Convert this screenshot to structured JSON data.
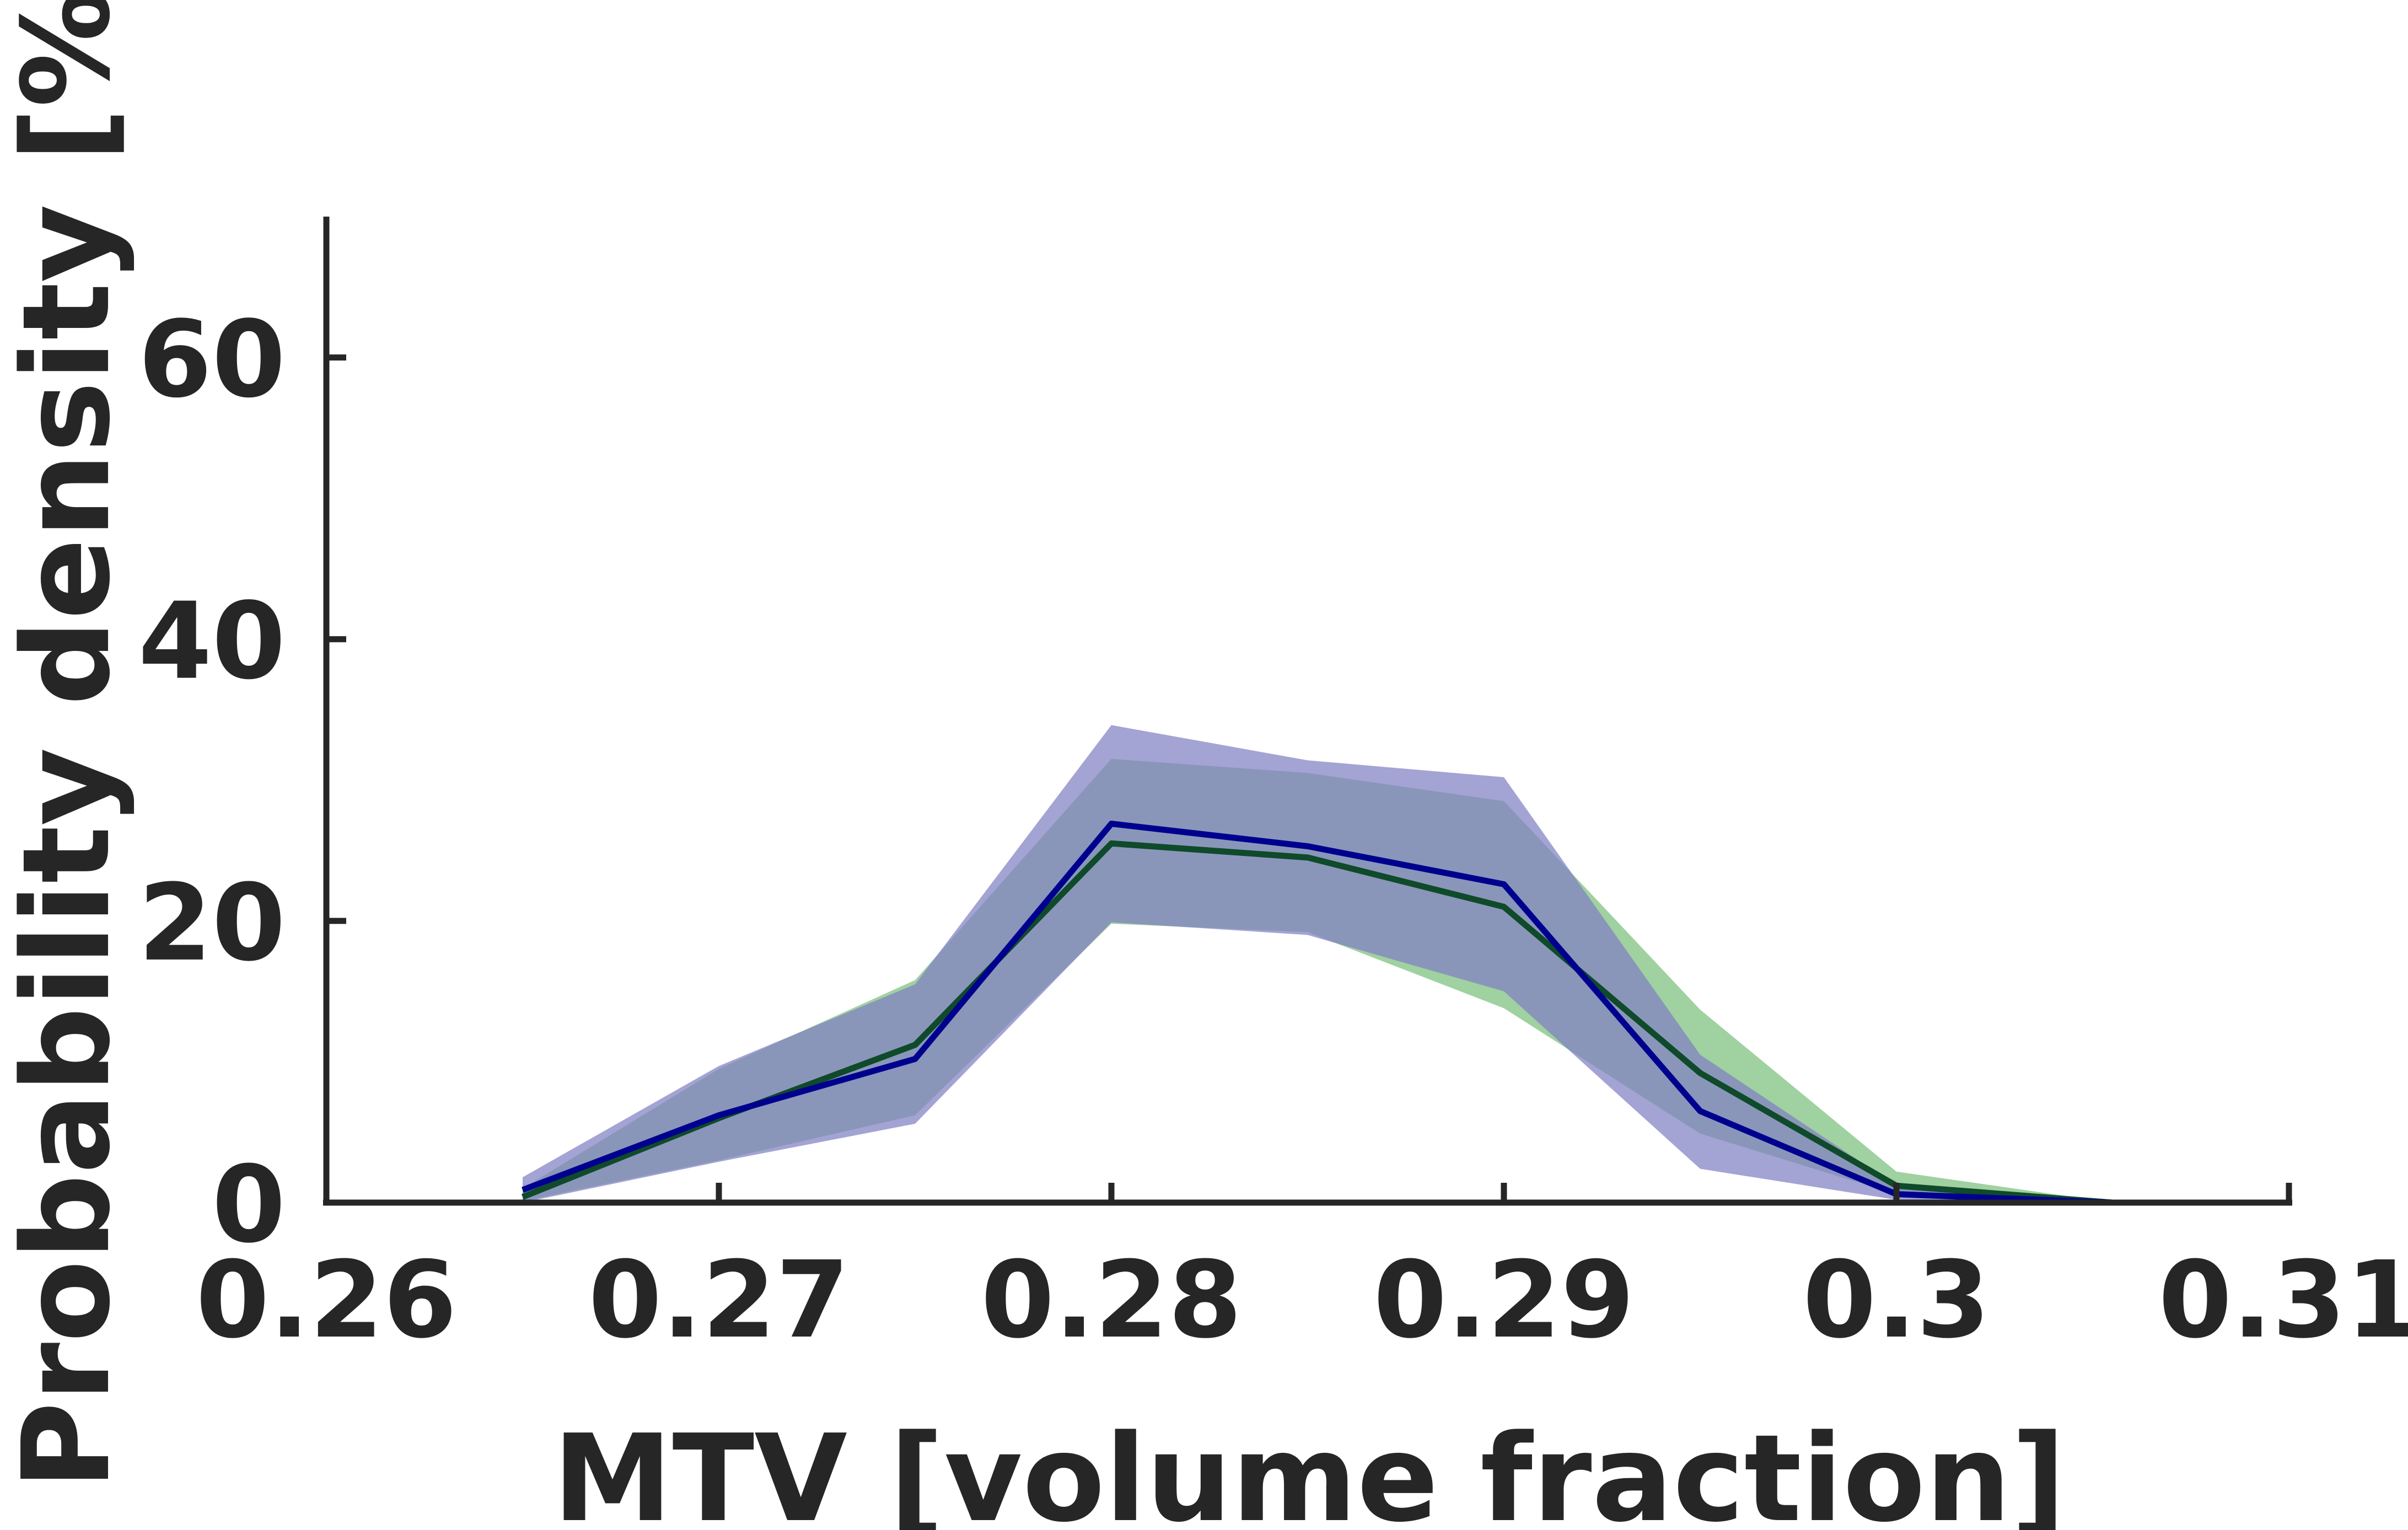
{
  "chart_data": {
    "type": "line",
    "title": "",
    "xlabel": "MTV [volume fraction]",
    "ylabel": "Probability density [%]",
    "xlim": [
      0.26,
      0.31
    ],
    "ylim": [
      0,
      70
    ],
    "xticks": [
      0.26,
      0.27,
      0.28,
      0.29,
      0.3,
      0.31
    ],
    "xtick_labels": [
      "0.26",
      "0.27",
      "0.28",
      "0.29",
      "0.3",
      "0.31"
    ],
    "yticks": [
      0,
      20,
      40,
      60
    ],
    "ytick_labels": [
      "0",
      "20",
      "40",
      "60"
    ],
    "grid": false,
    "legend": false,
    "x": [
      0.265,
      0.27,
      0.275,
      0.28,
      0.285,
      0.29,
      0.295,
      0.3,
      0.3055
    ],
    "series": [
      {
        "name": "green",
        "line_color": "#0f4a2a",
        "band_color": "#7cbf7c",
        "values": [
          0.4,
          6.0,
          11.2,
          25.5,
          24.5,
          21.0,
          9.2,
          1.2,
          0.0
        ],
        "upper": [
          1.0,
          9.5,
          15.8,
          31.5,
          30.5,
          28.5,
          13.7,
          2.2,
          0.0
        ],
        "lower": [
          0.1,
          3.0,
          6.2,
          19.8,
          19.2,
          13.8,
          4.9,
          0.6,
          0.0
        ]
      },
      {
        "name": "blue",
        "line_color": "#00008f",
        "band_color": "#8080c4",
        "values": [
          0.9,
          6.2,
          10.2,
          26.9,
          25.3,
          22.6,
          6.5,
          0.6,
          0.0
        ],
        "upper": [
          1.8,
          9.7,
          15.5,
          33.9,
          31.4,
          30.2,
          10.5,
          1.2,
          0.0
        ],
        "lower": [
          0.0,
          2.9,
          5.6,
          19.9,
          19.0,
          15.0,
          2.4,
          0.2,
          0.0
        ]
      }
    ]
  }
}
